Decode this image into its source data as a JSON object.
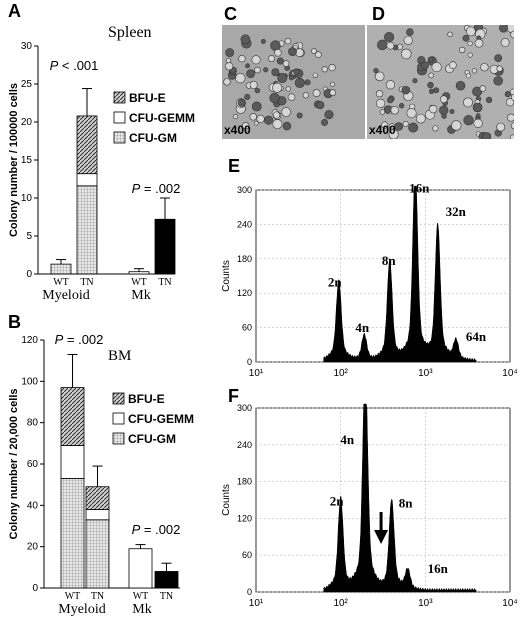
{
  "panels": {
    "A": {
      "letter": "A",
      "title": "Spleen"
    },
    "B": {
      "letter": "B",
      "title": "BM"
    },
    "C": {
      "letter": "C",
      "magnification": "x400"
    },
    "D": {
      "letter": "D",
      "magnification": "x400"
    },
    "E": {
      "letter": "E"
    },
    "F": {
      "letter": "F"
    }
  },
  "colors": {
    "bfu_e": "#b0b0b0",
    "cfu_gemm": "#ffffff",
    "cfu_gm": "#dcdcdc",
    "mk_tn": "#000000",
    "histogram": "#000000",
    "photo_bg": "#a9a9a9"
  },
  "chart_data": [
    {
      "id": "A",
      "type": "bar",
      "stacked": true,
      "title": "Spleen",
      "ylabel": "Colony number / 100000 cells",
      "ylim": [
        0,
        30
      ],
      "yticks": [
        0,
        5,
        10,
        15,
        20,
        25,
        30
      ],
      "groups": [
        "Myeloid",
        "Mk"
      ],
      "categories": [
        "WT",
        "TN",
        "WT",
        "TN"
      ],
      "legend": [
        "BFU-E",
        "CFU-GEMM",
        "CFU-GM"
      ],
      "legend_position": "right",
      "series": [
        {
          "name": "CFU-GM",
          "values": [
            1.3,
            11.6,
            null,
            null
          ]
        },
        {
          "name": "CFU-GEMM",
          "values": [
            0,
            1.6,
            null,
            null
          ]
        },
        {
          "name": "BFU-E",
          "values": [
            0,
            7.6,
            null,
            null
          ]
        }
      ],
      "mk": {
        "WT": 0.3,
        "TN": 7.2
      },
      "errors": {
        "Myeloid-WT": 0.6,
        "Myeloid-TN": 3.6,
        "Mk-WT": 0.4,
        "Mk-TN": 2.8
      },
      "annotations": [
        "P < .001",
        "P = .002"
      ]
    },
    {
      "id": "B",
      "type": "bar",
      "stacked": true,
      "title": "BM",
      "ylabel": "Colony number / 20,000 cells",
      "ylim": [
        0,
        120
      ],
      "yticks": [
        0,
        20,
        40,
        60,
        80,
        100,
        120
      ],
      "groups": [
        "Myeloid",
        "Mk"
      ],
      "categories": [
        "WT",
        "TN",
        "WT",
        "TN"
      ],
      "legend": [
        "BFU-E",
        "CFU-GEMM",
        "CFU-GM"
      ],
      "legend_position": "right",
      "series": [
        {
          "name": "CFU-GM",
          "values": [
            53,
            33,
            null,
            null
          ]
        },
        {
          "name": "CFU-GEMM",
          "values": [
            16,
            5,
            null,
            null
          ]
        },
        {
          "name": "BFU-E",
          "values": [
            28,
            11,
            null,
            null
          ]
        }
      ],
      "mk": {
        "WT": 19,
        "TN": 8
      },
      "errors": {
        "Myeloid-WT": 16,
        "Myeloid-TN": 10,
        "Mk-WT": 2,
        "Mk-TN": 4
      },
      "annotations": [
        "P = .002",
        "P = .002"
      ]
    },
    {
      "id": "E",
      "type": "area",
      "ylabel": "Counts",
      "xscale": "log",
      "xlim": [
        10,
        10000
      ],
      "xticks": [
        "10¹",
        "10²",
        "10³",
        "10⁴"
      ],
      "ylim": [
        0,
        300
      ],
      "yticks": [
        0,
        60,
        120,
        180,
        240,
        300
      ],
      "grid": true,
      "peaks": [
        {
          "label": "2n",
          "x": 95,
          "y": 118
        },
        {
          "label": "4n",
          "x": 190,
          "y": 38
        },
        {
          "label": "8n",
          "x": 380,
          "y": 148
        },
        {
          "label": "16n",
          "x": 760,
          "y": 282
        },
        {
          "label": "32n",
          "x": 1400,
          "y": 202
        },
        {
          "label": "64n",
          "x": 2300,
          "y": 30
        }
      ]
    },
    {
      "id": "F",
      "type": "area",
      "ylabel": "Counts",
      "xscale": "log",
      "xlim": [
        10,
        10000
      ],
      "xticks": [
        "10¹",
        "10²",
        "10³",
        "10⁴"
      ],
      "ylim": [
        0,
        300
      ],
      "yticks": [
        0,
        60,
        120,
        180,
        240,
        300
      ],
      "grid": true,
      "peaks": [
        {
          "label": "2n",
          "x": 100,
          "y": 128
        },
        {
          "label": "4n",
          "x": 195,
          "y": 310
        },
        {
          "label": "8n",
          "x": 400,
          "y": 125
        },
        {
          "label": "16n",
          "x": 620,
          "y": 28
        }
      ],
      "arrow_x": 300
    }
  ]
}
